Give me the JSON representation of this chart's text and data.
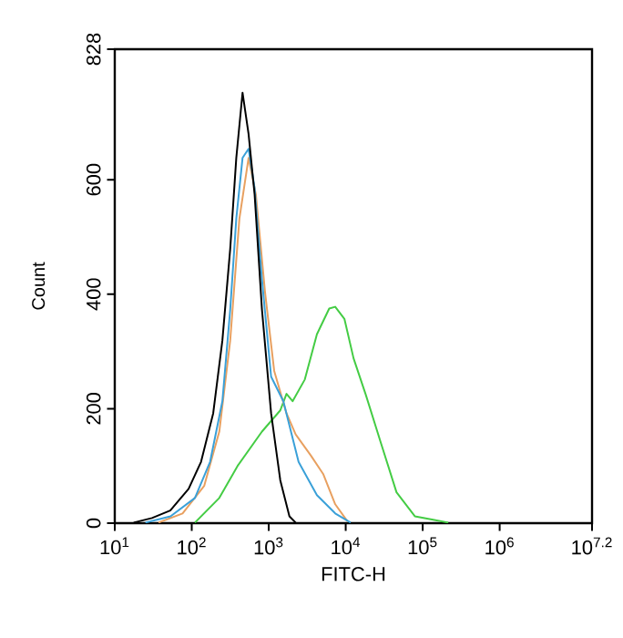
{
  "chart_data": {
    "type": "line",
    "xlabel": "FITC-H",
    "ylabel": "Count",
    "log": "x",
    "grid": false,
    "marker": "none",
    "line_style": "solid",
    "xlim": [
      10,
      15848932
    ],
    "ylim": [
      0,
      828
    ],
    "xticks": [
      {
        "value": 10,
        "label": "10$^{1}$"
      },
      {
        "value": 100,
        "label": "10$^{2}$"
      },
      {
        "value": 1000,
        "label": "10$^{3}$"
      },
      {
        "value": 10000,
        "label": "10$^{4}$"
      },
      {
        "value": 100000,
        "label": "10$^{5}$"
      },
      {
        "value": 1000000,
        "label": "10$^{6}$"
      },
      {
        "value": 15848932,
        "label": "10$^{7.2}$"
      }
    ],
    "yticks": [
      0,
      200,
      400,
      600,
      828
    ],
    "series": [
      {
        "color": "#44cc44",
        "x": [
          110,
          228,
          394,
          817,
          1413,
          1702,
          2042,
          2944,
          4227,
          6109,
          7311,
          9616,
          12650,
          18280,
          28840,
          45710,
          79070,
          136800,
          215300
        ],
        "values": [
          1,
          44,
          100,
          160,
          197,
          226,
          213,
          251,
          330,
          375,
          378,
          357,
          288,
          224,
          139,
          54,
          12,
          6,
          1
        ]
      },
      {
        "color": "#e8a060",
        "x": [
          37,
          76,
          145,
          228,
          316,
          416,
          547,
          681,
          895,
          1178,
          1702,
          2239,
          3532,
          5093,
          7311,
          10570
        ],
        "values": [
          1,
          17,
          65,
          160,
          319,
          532,
          638,
          574,
          404,
          266,
          192,
          155,
          118,
          86,
          33,
          3
        ]
      },
      {
        "color": "#3aa0d8",
        "x": [
          25,
          53,
          110,
          173,
          250,
          316,
          379,
          457,
          547,
          656,
          817,
          1074,
          1549,
          2443,
          4227,
          7311,
          11590
        ],
        "values": [
          1,
          12,
          44,
          107,
          213,
          373,
          532,
          638,
          654,
          585,
          426,
          256,
          213,
          107,
          49,
          17,
          1
        ]
      },
      {
        "color": "#000000",
        "x": [
          17.6,
          30.4,
          52.6,
          91,
          132,
          190,
          250,
          316,
          379,
          457,
          547,
          656,
          817,
          1074,
          1413,
          1858,
          2239
        ],
        "values": [
          1,
          9,
          22,
          60,
          107,
          192,
          319,
          479,
          638,
          752,
          680,
          574,
          373,
          192,
          75,
          12,
          1
        ]
      }
    ]
  }
}
